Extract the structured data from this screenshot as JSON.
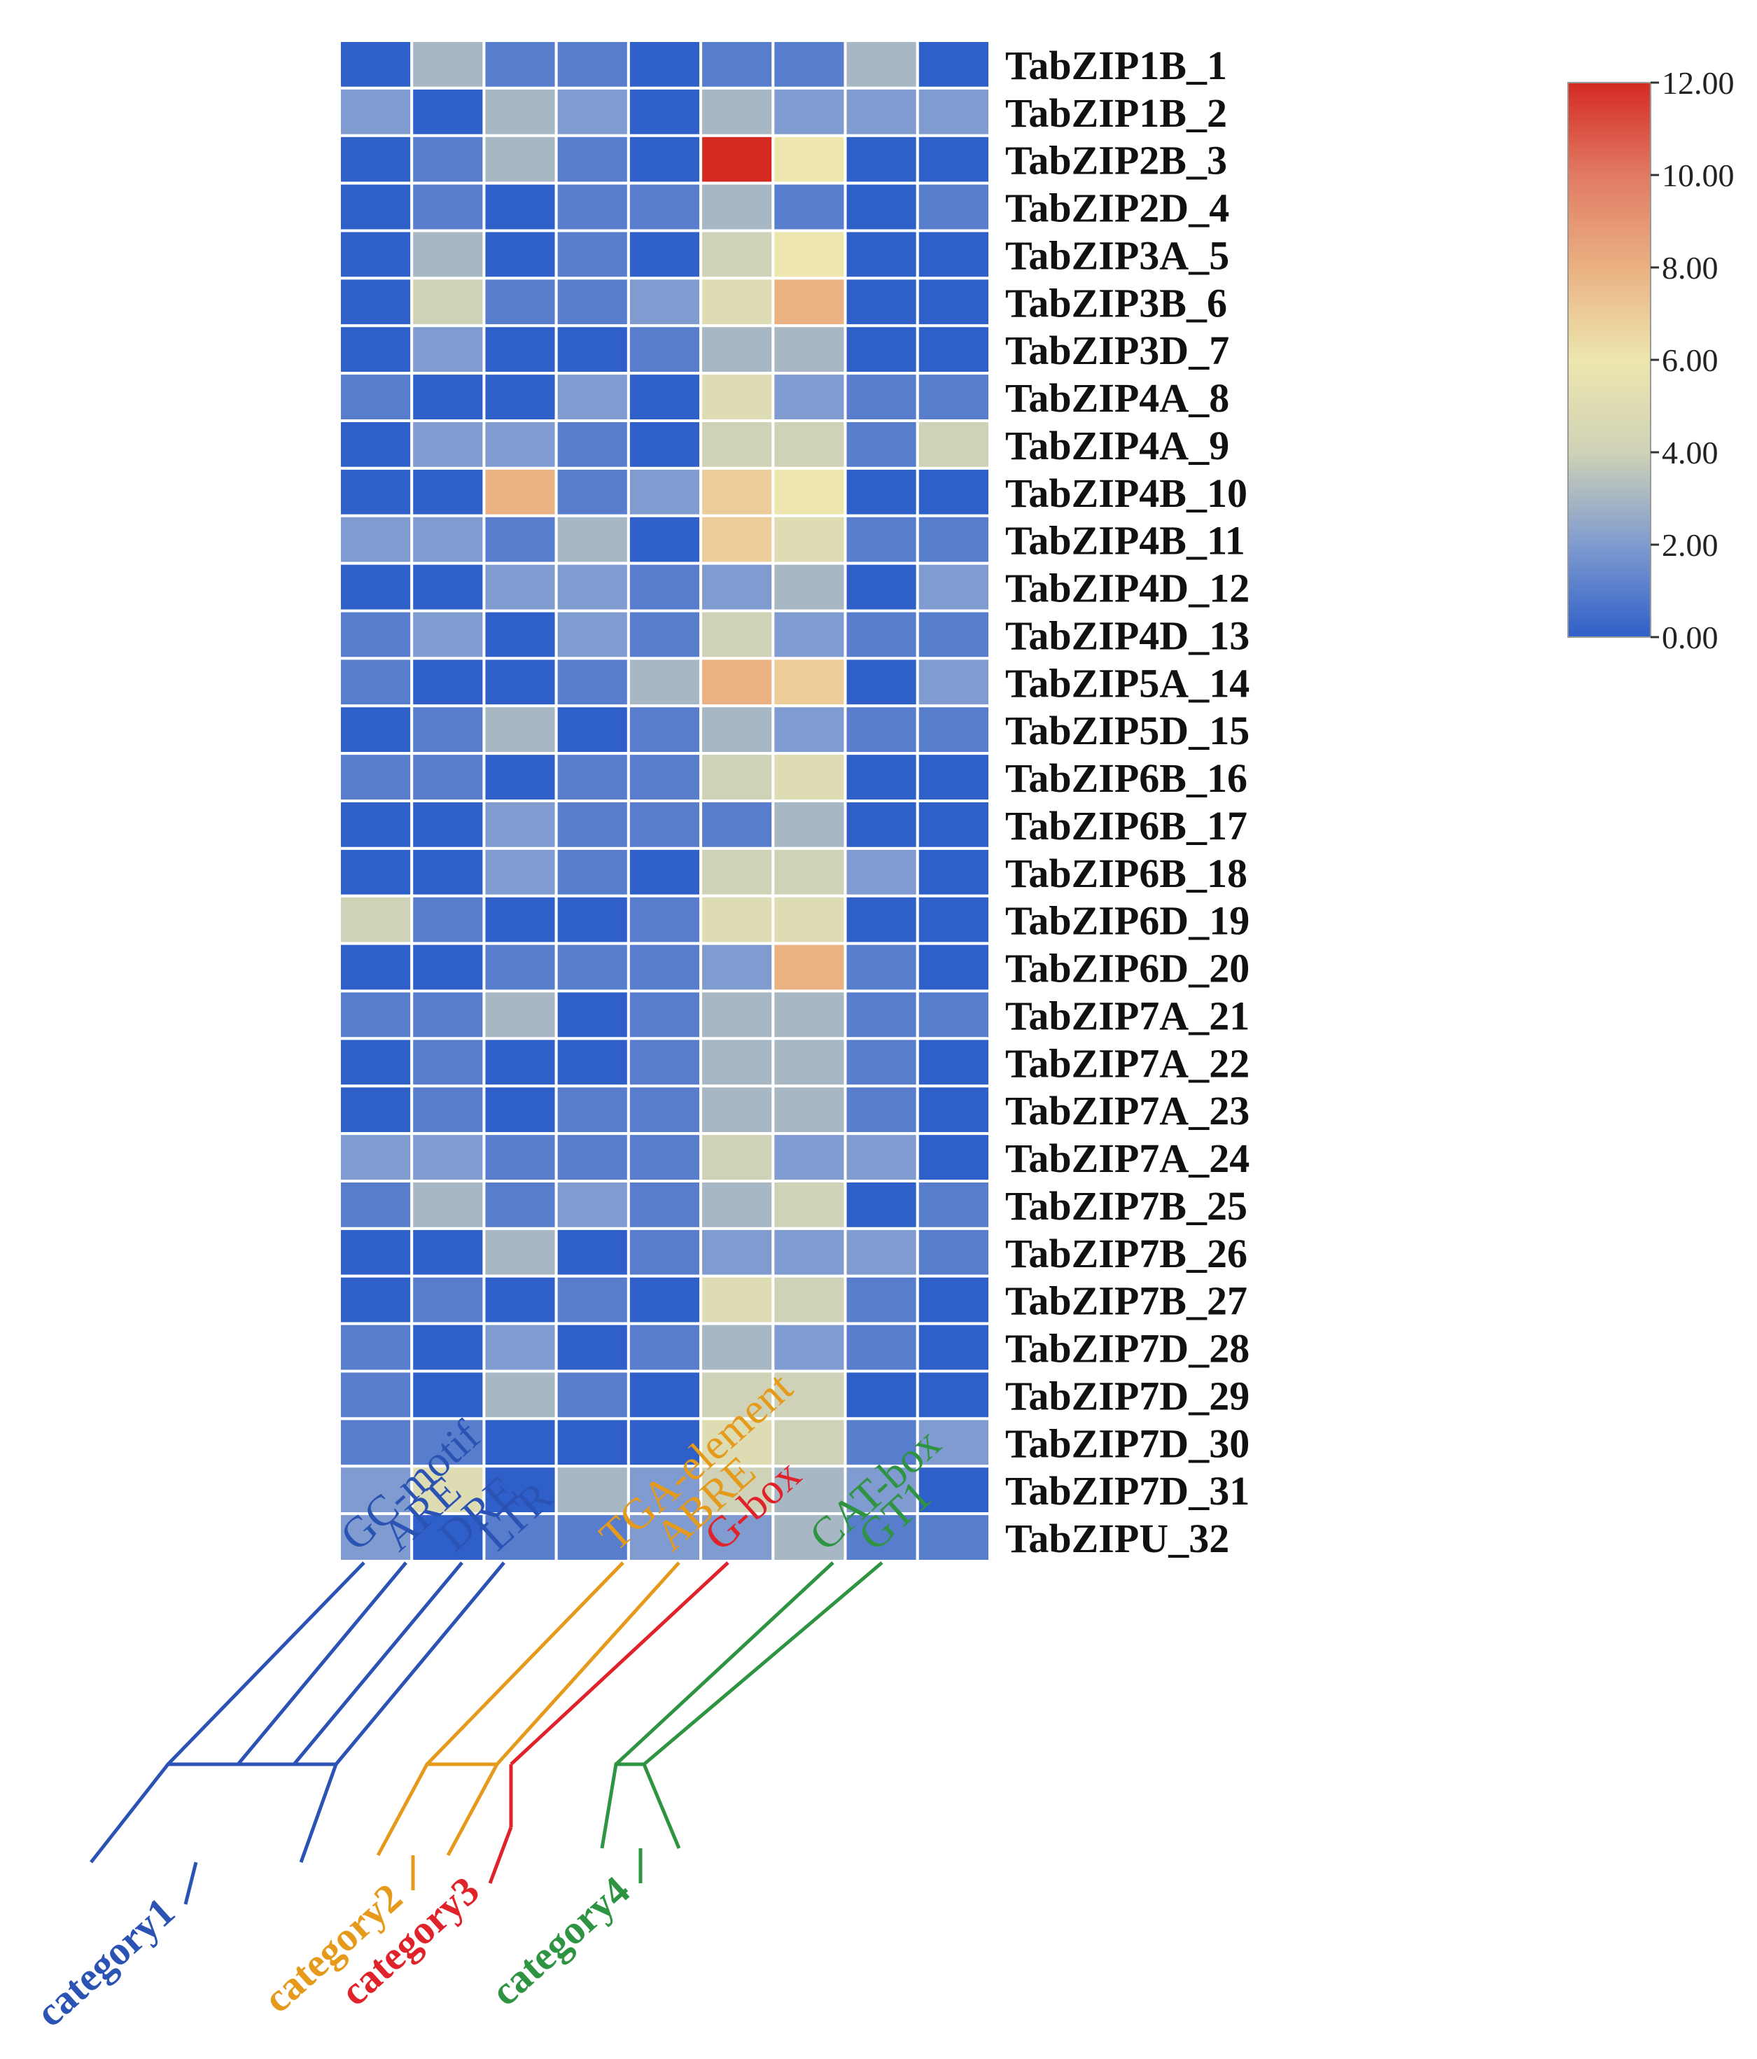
{
  "chart_data": {
    "type": "heatmap",
    "rows": [
      "TabZIP1B_1",
      "TabZIP1B_2",
      "TabZIP2B_3",
      "TabZIP2D_4",
      "TabZIP3A_5",
      "TabZIP3B_6",
      "TabZIP3D_7",
      "TabZIP4A_8",
      "TabZIP4A_9",
      "TabZIP4B_10",
      "TabZIP4B_11",
      "TabZIP4D_12",
      "TabZIP4D_13",
      "TabZIP5A_14",
      "TabZIP5D_15",
      "TabZIP6B_16",
      "TabZIP6B_17",
      "TabZIP6B_18",
      "TabZIP6D_19",
      "TabZIP6D_20",
      "TabZIP7A_21",
      "TabZIP7A_22",
      "TabZIP7A_23",
      "TabZIP7A_24",
      "TabZIP7B_25",
      "TabZIP7B_26",
      "TabZIP7B_27",
      "TabZIP7D_28",
      "TabZIP7D_29",
      "TabZIP7D_30",
      "TabZIP7D_31",
      "TabZIPU_32"
    ],
    "columns": [
      "GC-motif",
      "ARE",
      "DRE",
      "LTR",
      "TGA-element",
      "ABRE",
      "G-box",
      "CAT-box",
      "GT1"
    ],
    "values": [
      [
        0,
        3,
        1,
        1,
        0,
        1,
        1,
        3,
        0
      ],
      [
        2,
        0,
        3,
        2,
        0,
        3,
        2,
        2,
        2
      ],
      [
        0,
        1,
        3,
        1,
        0,
        12,
        6,
        0,
        0
      ],
      [
        0,
        1,
        0,
        1,
        1,
        3,
        1,
        0,
        1
      ],
      [
        0,
        3,
        0,
        1,
        0,
        4,
        6,
        0,
        0
      ],
      [
        0,
        4,
        1,
        1,
        2,
        5,
        8,
        0,
        0
      ],
      [
        0,
        2,
        0,
        0,
        1,
        3,
        3,
        0,
        0
      ],
      [
        1,
        0,
        0,
        2,
        0,
        5,
        2,
        1,
        1
      ],
      [
        0,
        2,
        2,
        1,
        0,
        4,
        4,
        1,
        4
      ],
      [
        0,
        0,
        8,
        1,
        2,
        7,
        6,
        0,
        0
      ],
      [
        2,
        2,
        1,
        3,
        0,
        7,
        5,
        1,
        1
      ],
      [
        0,
        0,
        2,
        2,
        1,
        2,
        3,
        0,
        2
      ],
      [
        1,
        2,
        0,
        2,
        1,
        4,
        2,
        1,
        1
      ],
      [
        1,
        0,
        0,
        1,
        3,
        8,
        7,
        0,
        2
      ],
      [
        0,
        1,
        3,
        0,
        1,
        3,
        2,
        1,
        1
      ],
      [
        1,
        1,
        0,
        1,
        1,
        4,
        5,
        0,
        0
      ],
      [
        0,
        0,
        2,
        1,
        1,
        1,
        3,
        0,
        0
      ],
      [
        0,
        0,
        2,
        1,
        0,
        4,
        4,
        2,
        0
      ],
      [
        4,
        1,
        0,
        0,
        1,
        5,
        5,
        0,
        0
      ],
      [
        0,
        0,
        1,
        1,
        1,
        2,
        8,
        1,
        0
      ],
      [
        1,
        1,
        3,
        0,
        1,
        3,
        3,
        1,
        1
      ],
      [
        0,
        1,
        0,
        0,
        1,
        3,
        3,
        1,
        0
      ],
      [
        0,
        1,
        0,
        1,
        1,
        3,
        3,
        1,
        0
      ],
      [
        2,
        2,
        1,
        1,
        1,
        4,
        2,
        2,
        0
      ],
      [
        1,
        3,
        1,
        2,
        1,
        3,
        4,
        0,
        1
      ],
      [
        0,
        0,
        3,
        0,
        1,
        2,
        2,
        2,
        1
      ],
      [
        0,
        1,
        0,
        1,
        0,
        5,
        4,
        1,
        0
      ],
      [
        1,
        0,
        2,
        0,
        1,
        3,
        2,
        1,
        0
      ],
      [
        1,
        0,
        3,
        1,
        0,
        4,
        4,
        0,
        0
      ],
      [
        1,
        1,
        0,
        0,
        0,
        5,
        4,
        1,
        2
      ],
      [
        2,
        5,
        0,
        3,
        2,
        4,
        3,
        2,
        0
      ],
      [
        2,
        0,
        1,
        1,
        2,
        2,
        3,
        1,
        1
      ]
    ],
    "colorbar": {
      "min": 0,
      "max": 12,
      "ticks": [
        "0.00",
        "2.00",
        "4.00",
        "6.00",
        "8.00",
        "10.00",
        "12.00"
      ],
      "stops": [
        "#2f5fc8",
        "#7f9bcf",
        "#cfd2b6",
        "#ede6ae",
        "#eab182",
        "#e17a63",
        "#d42a22"
      ]
    },
    "categories": [
      {
        "label": "category1",
        "color": "#2a53b4",
        "columns": [
          "GC-motif",
          "ARE",
          "DRE",
          "LTR"
        ]
      },
      {
        "label": "category2",
        "color": "#e59a1b",
        "columns": [
          "TGA-element",
          "ABRE"
        ]
      },
      {
        "label": "category3",
        "color": "#e0232a",
        "columns": [
          "G-box"
        ]
      },
      {
        "label": "category4",
        "color": "#2f9441",
        "columns": [
          "CAT-box",
          "GT1"
        ]
      }
    ]
  }
}
